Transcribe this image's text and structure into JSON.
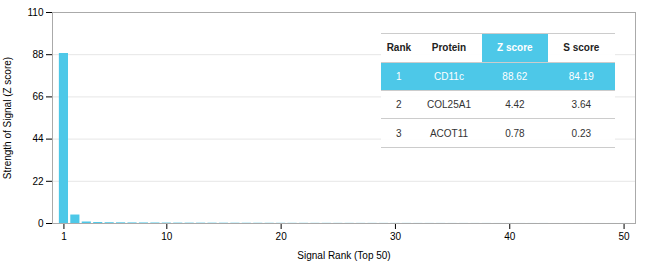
{
  "chart_data": {
    "type": "bar",
    "xlabel": "Signal Rank (Top 50)",
    "ylabel": "Strength of Signal (Z score)",
    "x": [
      1,
      2,
      3,
      4,
      5,
      6,
      7,
      8,
      9,
      10,
      11,
      12,
      13,
      14,
      15,
      16,
      17,
      18,
      19,
      20,
      21,
      22,
      23,
      24,
      25,
      26,
      27,
      28,
      29,
      30,
      31,
      32,
      33,
      34,
      35,
      36,
      37,
      38,
      39,
      40,
      41,
      42,
      43,
      44,
      45,
      46,
      47,
      48,
      49,
      50
    ],
    "values": [
      88.62,
      4.42,
      0.78,
      0.5,
      0.4,
      0.35,
      0.3,
      0.28,
      0.25,
      0.22,
      0.2,
      0.18,
      0.17,
      0.16,
      0.15,
      0.14,
      0.13,
      0.12,
      0.11,
      0.1,
      0.09,
      0.09,
      0.08,
      0.08,
      0.07,
      0.07,
      0.06,
      0.06,
      0.05,
      0.05,
      0.05,
      0.04,
      0.04,
      0.04,
      0.03,
      0.03,
      0.03,
      0.03,
      0.02,
      0.02,
      0.02,
      0.02,
      0.02,
      0.01,
      0.01,
      0.01,
      0.01,
      0.01,
      0.01,
      0.01
    ],
    "color": "#4dc8e8",
    "xlim": [
      0,
      51
    ],
    "ylim": [
      0,
      110
    ],
    "xticks": [
      1,
      10,
      20,
      30,
      40,
      50
    ],
    "yticks": [
      0,
      22,
      44,
      66,
      88,
      110
    ],
    "grid": true,
    "table": {
      "headers": [
        "Rank",
        "Protein",
        "Z score",
        "S score"
      ],
      "rows": [
        [
          "1",
          "CD11c",
          "88.62",
          "84.19"
        ],
        [
          "2",
          "COL25A1",
          "4.42",
          "3.64"
        ],
        [
          "3",
          "ACOT11",
          "0.78",
          "0.23"
        ]
      ]
    }
  }
}
